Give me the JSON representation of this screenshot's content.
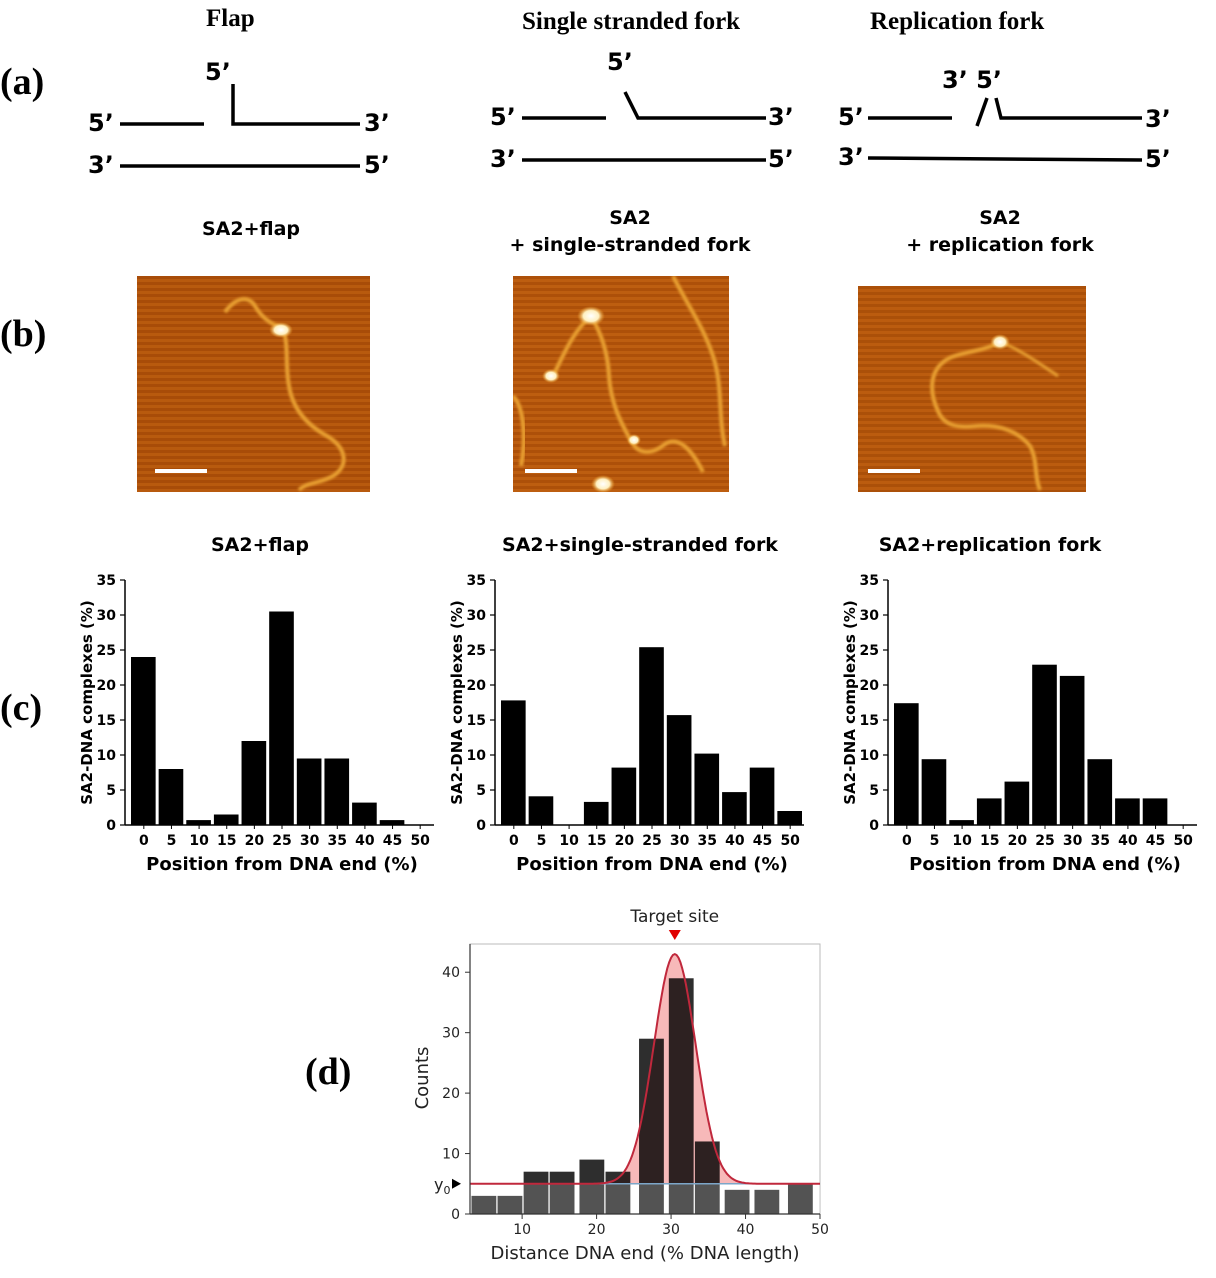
{
  "panel_labels": {
    "a": "(a)",
    "b": "(b)",
    "c": "(c)",
    "d": "(d)"
  },
  "schematics": {
    "flap": {
      "title": "Flap",
      "labels": {
        "top_5": "5’",
        "left_top": "5’",
        "right_top": "3’",
        "left_bottom": "3’",
        "right_bottom": "5’"
      }
    },
    "ss_fork": {
      "title": "Single stranded fork",
      "labels": {
        "top_5": "5’",
        "left_top": "5’",
        "right_top": "3’",
        "left_bottom": "3’",
        "right_bottom": "5’"
      }
    },
    "rep_fork": {
      "title": "Replication fork",
      "labels": {
        "top": "3’ 5’",
        "left_top": "5’",
        "right_top": "3’",
        "left_bottom": "3’",
        "right_bottom": "5’"
      }
    }
  },
  "afm": {
    "flap": {
      "title_line1": "SA2+flap",
      "title_line2": ""
    },
    "ss_fork": {
      "title_line1": "SA2",
      "title_line2": "+ single-stranded fork"
    },
    "rep_fork": {
      "title_line1": "SA2",
      "title_line2": "+ replication fork"
    }
  },
  "colors": {
    "afm_bg": "#b3550a",
    "afm_dark": "#8a3a05",
    "afm_dna": "#f0b030",
    "afm_spot": "#fff4d8",
    "scale_bar": "#ffffff",
    "gauss_fill": "#f08080",
    "gauss_line": "#c0283c",
    "baseline": "#7ca6c8",
    "marker": "#e00000",
    "bar_dark": "#2b2b2b"
  },
  "chart_data": [
    {
      "type": "bar",
      "title": "SA2+flap",
      "xlabel": "Position  from DNA end (%)",
      "ylabel": "SA2-DNA complexes (%)",
      "categories": [
        "0",
        "5",
        "10",
        "15",
        "20",
        "25",
        "30",
        "35",
        "40",
        "45",
        "50"
      ],
      "values": [
        24,
        8,
        0.7,
        1.5,
        12,
        30.5,
        9.5,
        9.5,
        3.2,
        0.7,
        0
      ],
      "yticks": [
        "0",
        "5",
        "10",
        "15",
        "20",
        "25",
        "30",
        "35"
      ],
      "ylim": [
        0,
        35
      ]
    },
    {
      "type": "bar",
      "title": "SA2+single-stranded fork",
      "xlabel": "Position  from DNA end (%)",
      "ylabel": "SA2-DNA complexes (%)",
      "categories": [
        "0",
        "5",
        "10",
        "15",
        "20",
        "25",
        "30",
        "35",
        "40",
        "45",
        "50"
      ],
      "values": [
        17.8,
        4.1,
        0,
        3.3,
        8.2,
        25.4,
        15.7,
        10.2,
        4.7,
        8.2,
        2
      ],
      "yticks": [
        "0",
        "5",
        "10",
        "15",
        "20",
        "25",
        "30",
        "35"
      ],
      "ylim": [
        0,
        35
      ]
    },
    {
      "type": "bar",
      "title": "SA2+replication fork",
      "xlabel": "Position  from DNA end (%)",
      "ylabel": "SA2-DNA complexes (%)",
      "categories": [
        "0",
        "5",
        "10",
        "15",
        "20",
        "25",
        "30",
        "35",
        "40",
        "45",
        "50"
      ],
      "values": [
        17.4,
        9.4,
        0.7,
        3.8,
        6.2,
        22.9,
        21.3,
        9.4,
        3.8,
        3.8,
        0
      ],
      "yticks": [
        "0",
        "5",
        "10",
        "15",
        "20",
        "25",
        "30",
        "35"
      ],
      "ylim": [
        0,
        35
      ]
    },
    {
      "type": "bar",
      "title": "Target site",
      "xlabel": "Distance DNA end (% DNA length)",
      "ylabel": "Counts",
      "y0_label": "y",
      "y0_sub": "0",
      "x": [
        5,
        8.5,
        12,
        15.5,
        19.5,
        23,
        27.5,
        31.5,
        35,
        39,
        43,
        47.5
      ],
      "values": [
        3,
        3,
        7,
        7,
        9,
        7,
        29,
        39,
        12,
        4,
        4,
        5
      ],
      "xticks": [
        "10",
        "20",
        "30",
        "40",
        "50"
      ],
      "yticks": [
        "0",
        "10",
        "20",
        "30",
        "40"
      ],
      "xlim": [
        3,
        50
      ],
      "ylim": [
        0,
        45
      ],
      "fit": {
        "y0": 5,
        "center": 30.5,
        "amplitude": 38,
        "sigma": 2.8
      }
    }
  ]
}
